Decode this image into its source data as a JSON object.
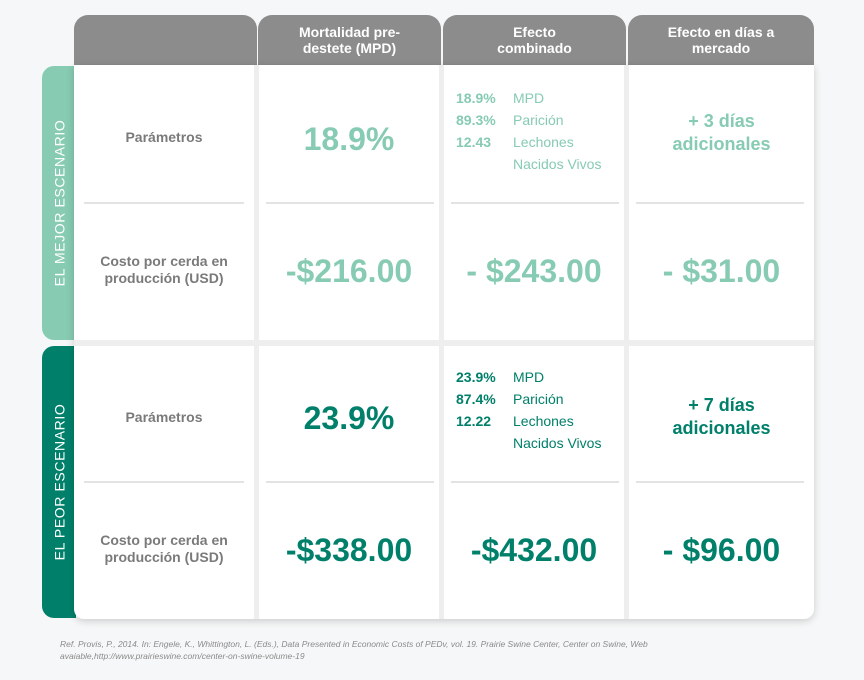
{
  "headers": {
    "col1": "Mortalidad pre-destete (MPD)",
    "col2": "Efecto combinado",
    "col3": "Efecto en días a mercado"
  },
  "rows": {
    "param_label": "Parámetros",
    "cost_label": "Costo por cerda en producción (USD)"
  },
  "best": {
    "side_label": "EL MEJOR ESCENARIO",
    "mpd": "18.9%",
    "combined": [
      {
        "value": "18.9%",
        "text": "MPD"
      },
      {
        "value": "89.3%",
        "text": "Parición"
      },
      {
        "value": "12.43",
        "text": "Lechones"
      },
      {
        "value": "",
        "text": "Nacidos Vivos"
      }
    ],
    "days_line1": "+ 3 días",
    "days_line2": "adicionales",
    "cost_mpd": "-$216.00",
    "cost_combined": "- $243.00",
    "cost_days": "- $31.00"
  },
  "worst": {
    "side_label": "EL PEOR ESCENARIO",
    "mpd": "23.9%",
    "combined": [
      {
        "value": "23.9%",
        "text": "MPD"
      },
      {
        "value": "87.4%",
        "text": "Parición"
      },
      {
        "value": "12.22",
        "text": "Lechones"
      },
      {
        "value": "",
        "text": "Nacidos Vivos"
      }
    ],
    "days_line1": "+ 7 días",
    "days_line2": "adicionales",
    "cost_mpd": "-$338.00",
    "cost_combined": "-$432.00",
    "cost_days": "- $96.00"
  },
  "reference_line1": "Ref. Provis, P., 2014. In: Engele, K., Whittington, L. (Eds.), Data Presented in Economic Costs of PEDv, vol. 19. Prairie Swine Center, Center on Swine, Web",
  "reference_line2": "avaiable,http://www.prairieswine.com/center-on-swine-volume-19",
  "colors": {
    "header_gray": "#8c8c8c",
    "best_green": "#86cbb2",
    "worst_green": "#00806a"
  }
}
